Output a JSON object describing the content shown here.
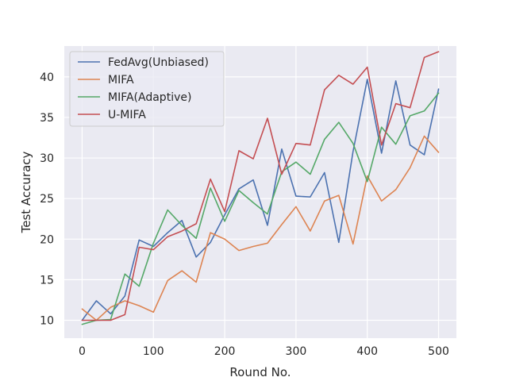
{
  "chart_data": {
    "type": "line",
    "xlabel": "Round No.",
    "ylabel": "Test Accuracy",
    "xlim": [
      -25,
      525
    ],
    "ylim": [
      7.8,
      43.8
    ],
    "xticks": [
      0,
      100,
      200,
      300,
      400,
      500
    ],
    "yticks": [
      10,
      15,
      20,
      25,
      30,
      35,
      40
    ],
    "grid": true,
    "legend_position": "upper-left",
    "x": [
      0,
      20,
      40,
      60,
      80,
      100,
      120,
      140,
      160,
      180,
      200,
      220,
      240,
      260,
      280,
      300,
      320,
      340,
      360,
      380,
      400,
      420,
      440,
      460,
      480,
      500
    ],
    "series": [
      {
        "name": "FedAvg(Unbiased)",
        "color": "#4c72b0",
        "values": [
          10.0,
          12.4,
          10.8,
          13.0,
          19.9,
          19.1,
          20.8,
          22.3,
          17.8,
          19.6,
          23.0,
          26.2,
          27.3,
          21.7,
          31.1,
          25.3,
          25.2,
          28.2,
          19.6,
          30.8,
          39.7,
          30.6,
          39.5,
          31.6,
          30.4,
          38.5
        ]
      },
      {
        "name": "MIFA",
        "color": "#dd8452",
        "values": [
          11.4,
          10.0,
          11.6,
          12.4,
          11.8,
          11.0,
          14.9,
          16.1,
          14.7,
          20.8,
          20.0,
          18.6,
          19.1,
          19.5,
          21.8,
          24.0,
          21.0,
          24.7,
          25.4,
          19.4,
          27.8,
          24.7,
          26.1,
          28.8,
          32.7,
          30.7
        ]
      },
      {
        "name": "MIFA(Adaptive)",
        "color": "#55a868",
        "values": [
          9.5,
          10.0,
          10.1,
          15.7,
          14.2,
          19.5,
          23.6,
          21.7,
          20.1,
          26.3,
          22.2,
          26.0,
          24.5,
          23.1,
          28.3,
          29.5,
          28.0,
          32.3,
          34.4,
          31.8,
          27.1,
          33.8,
          31.7,
          35.2,
          35.8,
          38.0
        ]
      },
      {
        "name": "U-MIFA",
        "color": "#c44e52",
        "values": [
          10.0,
          10.0,
          10.0,
          10.7,
          19.0,
          18.7,
          20.3,
          21.0,
          21.9,
          27.4,
          23.4,
          30.9,
          29.9,
          34.9,
          28.0,
          31.8,
          31.6,
          38.4,
          40.2,
          39.1,
          41.2,
          31.6,
          36.7,
          36.2,
          42.4,
          43.1
        ]
      }
    ]
  }
}
